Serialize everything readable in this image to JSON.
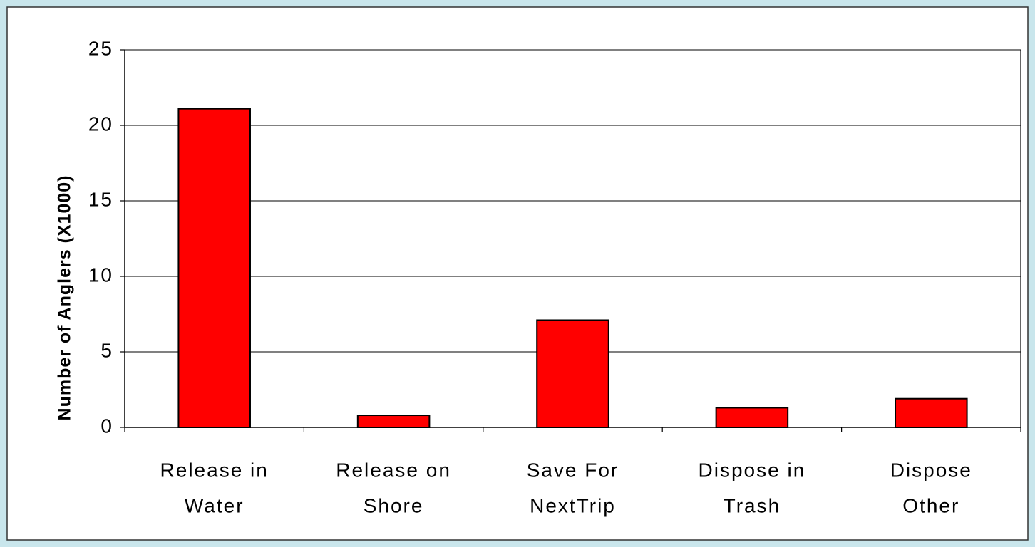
{
  "chart_data": {
    "type": "bar",
    "y_label": "Number of Anglers (X1000)",
    "categories": [
      [
        "Release in",
        "Water"
      ],
      [
        "Release on",
        "Shore"
      ],
      [
        "Save For",
        "NextTrip"
      ],
      [
        "Dispose in",
        "Trash"
      ],
      [
        "Dispose",
        "Other"
      ]
    ],
    "values": [
      21.1,
      0.8,
      7.1,
      1.3,
      1.9
    ],
    "color": "#ff0000",
    "ylim": [
      0,
      25
    ],
    "yticks": [
      0,
      5,
      10,
      15,
      20,
      25
    ],
    "grid": true
  }
}
